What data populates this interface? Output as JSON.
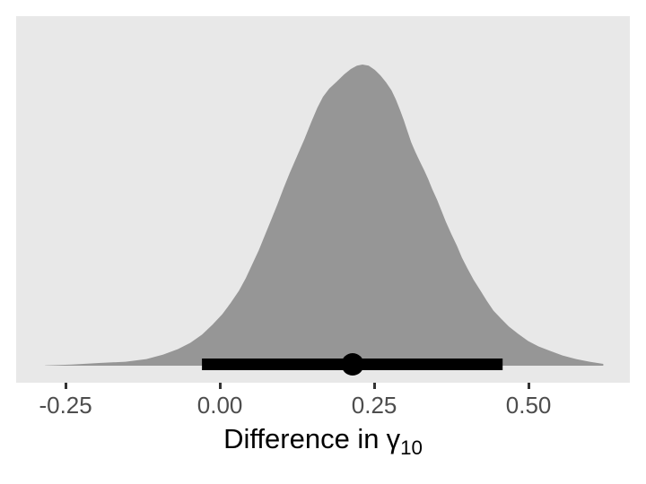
{
  "figure": {
    "background": "#FFFFFF",
    "panel_background": "#E8E8E8"
  },
  "chart_data": {
    "type": "area",
    "subtype": "posterior-density-with-point-interval",
    "title": "",
    "xlabel_main": "Difference in",
    "xlabel_symbol": "γ",
    "xlabel_subscript": "10",
    "ylabel": "",
    "xlim": [
      -0.33,
      0.664
    ],
    "grid": false,
    "legend": false,
    "x_ticks": [
      {
        "value": -0.25,
        "label": "-0.25"
      },
      {
        "value": 0.0,
        "label": "0.00"
      },
      {
        "value": 0.25,
        "label": "0.25"
      },
      {
        "value": 0.5,
        "label": "0.50"
      }
    ],
    "density_curve": {
      "x": [
        -0.283,
        -0.24,
        -0.196,
        -0.153,
        -0.119,
        -0.092,
        -0.068,
        -0.048,
        -0.029,
        -0.012,
        0.004,
        0.017,
        0.031,
        0.042,
        0.052,
        0.063,
        0.073,
        0.083,
        0.093,
        0.103,
        0.113,
        0.125,
        0.137,
        0.148,
        0.158,
        0.167,
        0.177,
        0.189,
        0.201,
        0.212,
        0.222,
        0.231,
        0.241,
        0.251,
        0.26,
        0.269,
        0.278,
        0.285,
        0.292,
        0.298,
        0.304,
        0.31,
        0.317,
        0.324,
        0.331,
        0.337,
        0.344,
        0.352,
        0.359,
        0.366,
        0.375,
        0.384,
        0.392,
        0.401,
        0.411,
        0.422,
        0.432,
        0.443,
        0.455,
        0.468,
        0.483,
        0.499,
        0.516,
        0.535,
        0.555,
        0.577,
        0.599,
        0.621
      ],
      "density": [
        0.001,
        0.004,
        0.009,
        0.013,
        0.022,
        0.037,
        0.055,
        0.076,
        0.103,
        0.136,
        0.171,
        0.207,
        0.249,
        0.291,
        0.335,
        0.383,
        0.434,
        0.484,
        0.535,
        0.589,
        0.639,
        0.696,
        0.753,
        0.809,
        0.857,
        0.893,
        0.92,
        0.943,
        0.967,
        0.985,
        0.996,
        1.0,
        0.996,
        0.982,
        0.964,
        0.941,
        0.914,
        0.884,
        0.848,
        0.815,
        0.777,
        0.741,
        0.708,
        0.678,
        0.648,
        0.621,
        0.586,
        0.55,
        0.514,
        0.478,
        0.437,
        0.398,
        0.359,
        0.323,
        0.285,
        0.249,
        0.216,
        0.183,
        0.157,
        0.13,
        0.106,
        0.082,
        0.064,
        0.049,
        0.034,
        0.022,
        0.013,
        0.006
      ]
    },
    "point_interval": {
      "point": 0.215,
      "lower": -0.029,
      "upper": 0.458
    },
    "colors": {
      "density_fill": "#969696",
      "interval": "#000000",
      "point": "#000000",
      "tick": "#333333",
      "tick_label": "#4D4D4D",
      "axis_title": "#000000"
    }
  }
}
